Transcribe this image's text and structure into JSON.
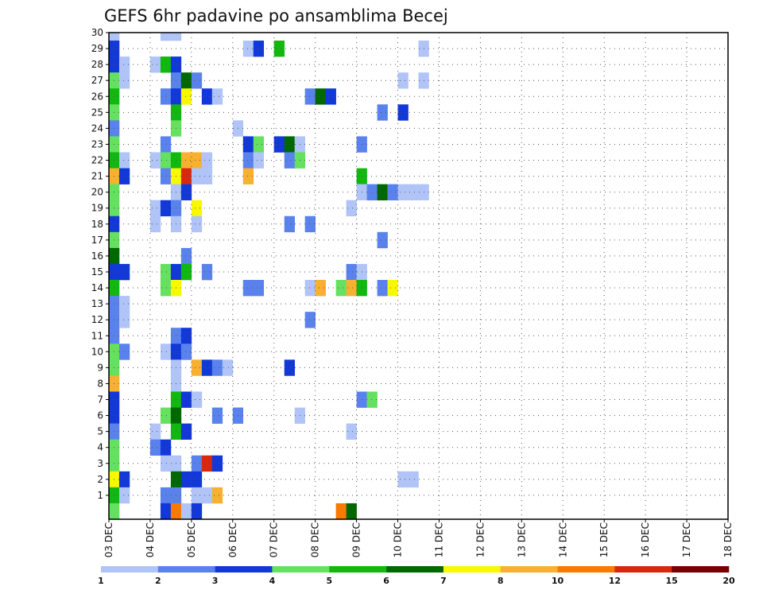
{
  "chart_data": {
    "type": "heatmap",
    "title": "GEFS 6hr padavine po ansamblima Becej",
    "xlabel": "",
    "ylabel": "",
    "x_unit_steps_per_day": 4,
    "x_tick_labels": [
      "03 DEC",
      "04 DEC",
      "05 DEC",
      "06 DEC",
      "07 DEC",
      "08 DEC",
      "09 DEC",
      "10 DEC",
      "11 DEC",
      "12 DEC",
      "13 DEC",
      "14 DEC",
      "15 DEC",
      "16 DEC",
      "17 DEC",
      "18 DEC"
    ],
    "y_tick_labels": [
      "1",
      "2",
      "3",
      "4",
      "5",
      "6",
      "7",
      "8",
      "9",
      "10",
      "11",
      "12",
      "13",
      "14",
      "15",
      "16",
      "17",
      "18",
      "19",
      "20",
      "21",
      "22",
      "23",
      "24",
      "25",
      "26",
      "27",
      "28",
      "29",
      "30"
    ],
    "grid": true,
    "colorbar": {
      "placement": "bottom",
      "colors": [
        "#b0c4f8",
        "#5a82ec",
        "#1238d8",
        "#66e060",
        "#10b810",
        "#006800",
        "#f8f800",
        "#f8b030",
        "#f87a00",
        "#d82810",
        "#780000"
      ],
      "labels": [
        "1",
        "2",
        "3",
        "4",
        "5",
        "6",
        "7",
        "8",
        "10",
        "12",
        "15",
        "20"
      ]
    },
    "cells": [
      {
        "m": 30,
        "t": 0,
        "c": 1
      },
      {
        "m": 30,
        "t": 5,
        "c": 1
      },
      {
        "m": 30,
        "t": 6,
        "c": 1
      },
      {
        "m": 29,
        "t": 0,
        "c": 3
      },
      {
        "m": 29,
        "t": 13,
        "c": 1
      },
      {
        "m": 29,
        "t": 14,
        "c": 3
      },
      {
        "m": 29,
        "t": 16,
        "c": 5
      },
      {
        "m": 29,
        "t": 30,
        "c": 1
      },
      {
        "m": 28,
        "t": 0,
        "c": 3
      },
      {
        "m": 28,
        "t": 1,
        "c": 1
      },
      {
        "m": 28,
        "t": 4,
        "c": 1
      },
      {
        "m": 28,
        "t": 5,
        "c": 5
      },
      {
        "m": 28,
        "t": 6,
        "c": 3
      },
      {
        "m": 27,
        "t": 0,
        "c": 4
      },
      {
        "m": 27,
        "t": 1,
        "c": 1
      },
      {
        "m": 27,
        "t": 6,
        "c": 2
      },
      {
        "m": 27,
        "t": 7,
        "c": 6
      },
      {
        "m": 27,
        "t": 8,
        "c": 2
      },
      {
        "m": 27,
        "t": 28,
        "c": 1
      },
      {
        "m": 27,
        "t": 30,
        "c": 1
      },
      {
        "m": 26,
        "t": 0,
        "c": 5
      },
      {
        "m": 26,
        "t": 5,
        "c": 2
      },
      {
        "m": 26,
        "t": 6,
        "c": 3
      },
      {
        "m": 26,
        "t": 7,
        "c": 7
      },
      {
        "m": 26,
        "t": 9,
        "c": 3
      },
      {
        "m": 26,
        "t": 10,
        "c": 1
      },
      {
        "m": 26,
        "t": 19,
        "c": 2
      },
      {
        "m": 26,
        "t": 20,
        "c": 6
      },
      {
        "m": 26,
        "t": 21,
        "c": 3
      },
      {
        "m": 25,
        "t": 0,
        "c": 4
      },
      {
        "m": 25,
        "t": 6,
        "c": 5
      },
      {
        "m": 25,
        "t": 26,
        "c": 2
      },
      {
        "m": 25,
        "t": 28,
        "c": 3
      },
      {
        "m": 24,
        "t": 0,
        "c": 2
      },
      {
        "m": 24,
        "t": 6,
        "c": 4
      },
      {
        "m": 24,
        "t": 12,
        "c": 1
      },
      {
        "m": 23,
        "t": 0,
        "c": 4
      },
      {
        "m": 23,
        "t": 5,
        "c": 2
      },
      {
        "m": 23,
        "t": 13,
        "c": 3
      },
      {
        "m": 23,
        "t": 14,
        "c": 4
      },
      {
        "m": 23,
        "t": 16,
        "c": 3
      },
      {
        "m": 23,
        "t": 17,
        "c": 6
      },
      {
        "m": 23,
        "t": 18,
        "c": 1
      },
      {
        "m": 23,
        "t": 24,
        "c": 2
      },
      {
        "m": 22,
        "t": 0,
        "c": 5
      },
      {
        "m": 22,
        "t": 1,
        "c": 1
      },
      {
        "m": 22,
        "t": 4,
        "c": 1
      },
      {
        "m": 22,
        "t": 5,
        "c": 4
      },
      {
        "m": 22,
        "t": 6,
        "c": 5
      },
      {
        "m": 22,
        "t": 7,
        "c": 8
      },
      {
        "m": 22,
        "t": 8,
        "c": 8
      },
      {
        "m": 22,
        "t": 9,
        "c": 1
      },
      {
        "m": 22,
        "t": 13,
        "c": 2
      },
      {
        "m": 22,
        "t": 14,
        "c": 1
      },
      {
        "m": 22,
        "t": 17,
        "c": 2
      },
      {
        "m": 22,
        "t": 18,
        "c": 4
      },
      {
        "m": 21,
        "t": 0,
        "c": 8
      },
      {
        "m": 21,
        "t": 1,
        "c": 3
      },
      {
        "m": 21,
        "t": 5,
        "c": 2
      },
      {
        "m": 21,
        "t": 6,
        "c": 7
      },
      {
        "m": 21,
        "t": 7,
        "c": 10
      },
      {
        "m": 21,
        "t": 8,
        "c": 1
      },
      {
        "m": 21,
        "t": 9,
        "c": 1
      },
      {
        "m": 21,
        "t": 13,
        "c": 8
      },
      {
        "m": 21,
        "t": 24,
        "c": 5
      },
      {
        "m": 20,
        "t": 0,
        "c": 4
      },
      {
        "m": 20,
        "t": 6,
        "c": 1
      },
      {
        "m": 20,
        "t": 7,
        "c": 3
      },
      {
        "m": 20,
        "t": 24,
        "c": 1
      },
      {
        "m": 20,
        "t": 25,
        "c": 2
      },
      {
        "m": 20,
        "t": 26,
        "c": 6
      },
      {
        "m": 20,
        "t": 27,
        "c": 2
      },
      {
        "m": 20,
        "t": 28,
        "c": 1
      },
      {
        "m": 20,
        "t": 29,
        "c": 1
      },
      {
        "m": 20,
        "t": 30,
        "c": 1
      },
      {
        "m": 19,
        "t": 0,
        "c": 4
      },
      {
        "m": 19,
        "t": 4,
        "c": 1
      },
      {
        "m": 19,
        "t": 5,
        "c": 3
      },
      {
        "m": 19,
        "t": 6,
        "c": 2
      },
      {
        "m": 19,
        "t": 8,
        "c": 7
      },
      {
        "m": 19,
        "t": 23,
        "c": 1
      },
      {
        "m": 18,
        "t": 0,
        "c": 3
      },
      {
        "m": 18,
        "t": 4,
        "c": 1
      },
      {
        "m": 18,
        "t": 6,
        "c": 1
      },
      {
        "m": 18,
        "t": 8,
        "c": 1
      },
      {
        "m": 18,
        "t": 17,
        "c": 2
      },
      {
        "m": 18,
        "t": 19,
        "c": 2
      },
      {
        "m": 17,
        "t": 0,
        "c": 4
      },
      {
        "m": 17,
        "t": 26,
        "c": 2
      },
      {
        "m": 16,
        "t": 0,
        "c": 6
      },
      {
        "m": 16,
        "t": 7,
        "c": 2
      },
      {
        "m": 15,
        "t": 0,
        "c": 3
      },
      {
        "m": 15,
        "t": 1,
        "c": 3
      },
      {
        "m": 15,
        "t": 5,
        "c": 4
      },
      {
        "m": 15,
        "t": 6,
        "c": 3
      },
      {
        "m": 15,
        "t": 7,
        "c": 5
      },
      {
        "m": 15,
        "t": 9,
        "c": 2
      },
      {
        "m": 15,
        "t": 23,
        "c": 2
      },
      {
        "m": 15,
        "t": 24,
        "c": 1
      },
      {
        "m": 14,
        "t": 0,
        "c": 5
      },
      {
        "m": 14,
        "t": 5,
        "c": 4
      },
      {
        "m": 14,
        "t": 6,
        "c": 7
      },
      {
        "m": 14,
        "t": 13,
        "c": 2
      },
      {
        "m": 14,
        "t": 14,
        "c": 2
      },
      {
        "m": 14,
        "t": 19,
        "c": 1
      },
      {
        "m": 14,
        "t": 20,
        "c": 8
      },
      {
        "m": 14,
        "t": 22,
        "c": 4
      },
      {
        "m": 14,
        "t": 23,
        "c": 8
      },
      {
        "m": 14,
        "t": 24,
        "c": 5
      },
      {
        "m": 14,
        "t": 26,
        "c": 2
      },
      {
        "m": 14,
        "t": 27,
        "c": 7
      },
      {
        "m": 13,
        "t": 0,
        "c": 2
      },
      {
        "m": 13,
        "t": 1,
        "c": 1
      },
      {
        "m": 12,
        "t": 0,
        "c": 2
      },
      {
        "m": 12,
        "t": 1,
        "c": 1
      },
      {
        "m": 12,
        "t": 19,
        "c": 2
      },
      {
        "m": 11,
        "t": 0,
        "c": 2
      },
      {
        "m": 11,
        "t": 6,
        "c": 2
      },
      {
        "m": 11,
        "t": 7,
        "c": 3
      },
      {
        "m": 10,
        "t": 0,
        "c": 4
      },
      {
        "m": 10,
        "t": 1,
        "c": 2
      },
      {
        "m": 10,
        "t": 5,
        "c": 1
      },
      {
        "m": 10,
        "t": 6,
        "c": 3
      },
      {
        "m": 10,
        "t": 7,
        "c": 2
      },
      {
        "m": 9,
        "t": 0,
        "c": 4
      },
      {
        "m": 9,
        "t": 6,
        "c": 1
      },
      {
        "m": 9,
        "t": 8,
        "c": 8
      },
      {
        "m": 9,
        "t": 9,
        "c": 3
      },
      {
        "m": 9,
        "t": 10,
        "c": 2
      },
      {
        "m": 9,
        "t": 11,
        "c": 1
      },
      {
        "m": 9,
        "t": 17,
        "c": 3
      },
      {
        "m": 8,
        "t": 0,
        "c": 8
      },
      {
        "m": 8,
        "t": 6,
        "c": 1
      },
      {
        "m": 7,
        "t": 0,
        "c": 3
      },
      {
        "m": 7,
        "t": 6,
        "c": 5
      },
      {
        "m": 7,
        "t": 7,
        "c": 3
      },
      {
        "m": 7,
        "t": 8,
        "c": 1
      },
      {
        "m": 7,
        "t": 24,
        "c": 2
      },
      {
        "m": 7,
        "t": 25,
        "c": 4
      },
      {
        "m": 6,
        "t": 0,
        "c": 3
      },
      {
        "m": 6,
        "t": 5,
        "c": 4
      },
      {
        "m": 6,
        "t": 6,
        "c": 6
      },
      {
        "m": 6,
        "t": 10,
        "c": 2
      },
      {
        "m": 6,
        "t": 12,
        "c": 2
      },
      {
        "m": 6,
        "t": 18,
        "c": 1
      },
      {
        "m": 5,
        "t": 0,
        "c": 2
      },
      {
        "m": 5,
        "t": 4,
        "c": 1
      },
      {
        "m": 5,
        "t": 6,
        "c": 5
      },
      {
        "m": 5,
        "t": 7,
        "c": 3
      },
      {
        "m": 5,
        "t": 23,
        "c": 1
      },
      {
        "m": 4,
        "t": 0,
        "c": 4
      },
      {
        "m": 4,
        "t": 4,
        "c": 2
      },
      {
        "m": 4,
        "t": 5,
        "c": 3
      },
      {
        "m": 3,
        "t": 0,
        "c": 4
      },
      {
        "m": 3,
        "t": 5,
        "c": 1
      },
      {
        "m": 3,
        "t": 6,
        "c": 1
      },
      {
        "m": 3,
        "t": 8,
        "c": 2
      },
      {
        "m": 3,
        "t": 9,
        "c": 10
      },
      {
        "m": 3,
        "t": 10,
        "c": 3
      },
      {
        "m": 2,
        "t": 0,
        "c": 7
      },
      {
        "m": 2,
        "t": 1,
        "c": 3
      },
      {
        "m": 2,
        "t": 6,
        "c": 6
      },
      {
        "m": 2,
        "t": 7,
        "c": 3
      },
      {
        "m": 2,
        "t": 8,
        "c": 3
      },
      {
        "m": 2,
        "t": 28,
        "c": 1
      },
      {
        "m": 2,
        "t": 29,
        "c": 1
      },
      {
        "m": 1,
        "t": 0,
        "c": 5
      },
      {
        "m": 1,
        "t": 1,
        "c": 1
      },
      {
        "m": 1,
        "t": 5,
        "c": 2
      },
      {
        "m": 1,
        "t": 6,
        "c": 2
      },
      {
        "m": 1,
        "t": 8,
        "c": 1
      },
      {
        "m": 1,
        "t": 9,
        "c": 1
      },
      {
        "m": 1,
        "t": 10,
        "c": 8
      },
      {
        "m": 0,
        "t": 0,
        "c": 4
      },
      {
        "m": 0,
        "t": 5,
        "c": 3
      },
      {
        "m": 0,
        "t": 6,
        "c": 9
      },
      {
        "m": 0,
        "t": 7,
        "c": 1
      },
      {
        "m": 0,
        "t": 8,
        "c": 3
      },
      {
        "m": 0,
        "t": 22,
        "c": 9
      },
      {
        "m": 0,
        "t": 23,
        "c": 6
      }
    ]
  }
}
